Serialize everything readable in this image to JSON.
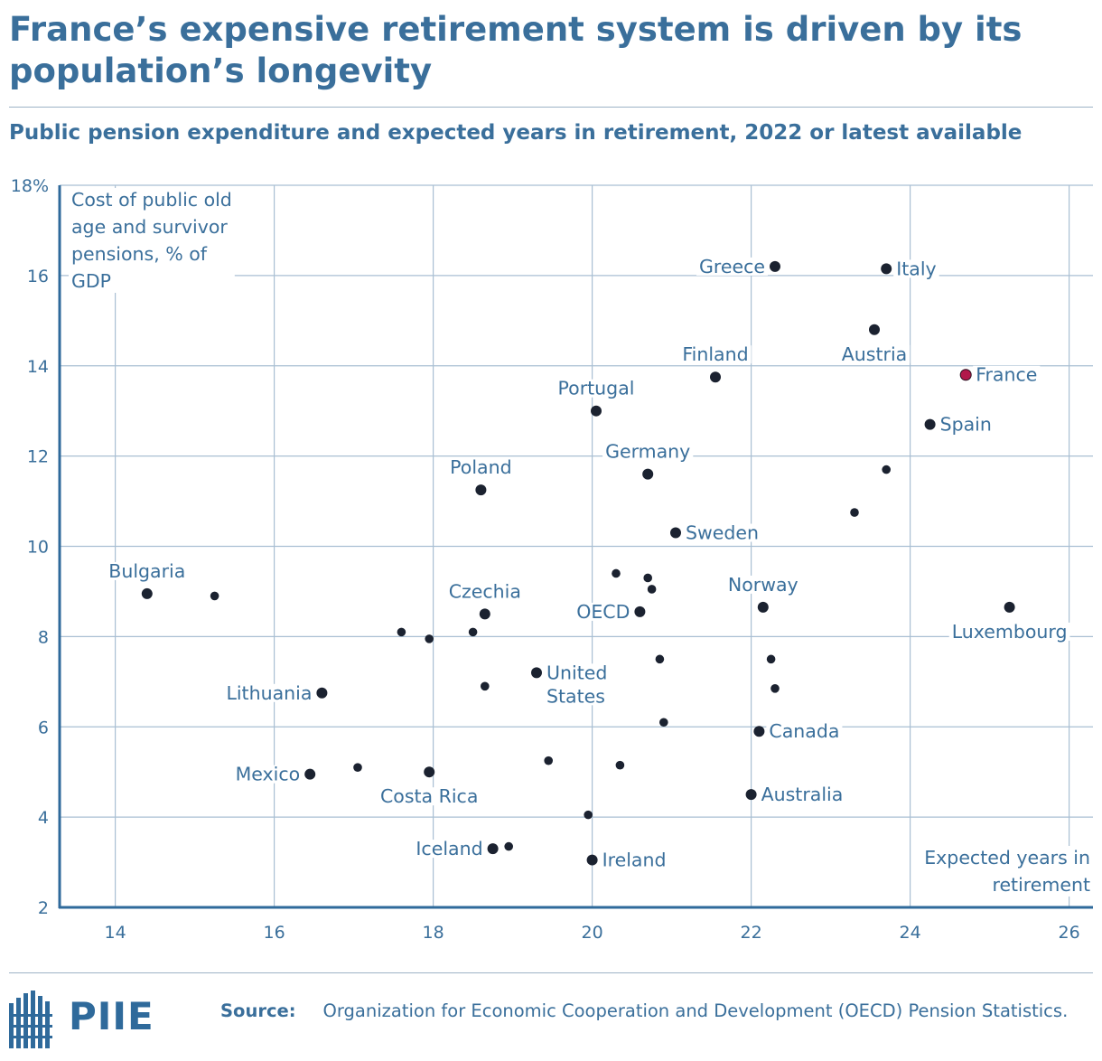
{
  "header": {
    "title": "France’s expensive retirement system is driven by its population’s longevity",
    "subtitle": "Public pension expenditure and expected years in retirement, 2022 or latest available"
  },
  "colors": {
    "text": "#3a6f9b",
    "grid": "#a9bfd3",
    "axis": "#2f6a9b",
    "point": "#1b2230",
    "highlight": "#b1184a"
  },
  "chart_data": {
    "type": "scatter",
    "title": "Public pension expenditure and expected years in retirement, 2022 or latest available",
    "xlabel": "Expected years in retirement",
    "ylabel": "Cost of public old age and survivor pensions, % of GDP",
    "xlim": [
      13.3,
      26.3
    ],
    "ylim": [
      2,
      18
    ],
    "x_ticks": [
      14,
      16,
      18,
      20,
      22,
      24,
      26
    ],
    "y_ticks": [
      2,
      4,
      6,
      8,
      10,
      12,
      14,
      16,
      18
    ],
    "y_tick_labels": [
      "2",
      "4",
      "6",
      "8",
      "10",
      "12",
      "14",
      "16",
      "18%"
    ],
    "points": [
      {
        "label": "Greece",
        "x": 22.3,
        "y": 16.2,
        "size": "large",
        "label_pos": "left"
      },
      {
        "label": "Italy",
        "x": 23.7,
        "y": 16.15,
        "size": "large",
        "label_pos": "right"
      },
      {
        "label": "Austria",
        "x": 23.55,
        "y": 14.8,
        "size": "large",
        "label_pos": "below"
      },
      {
        "label": "Finland",
        "x": 21.55,
        "y": 13.75,
        "size": "large",
        "label_pos": "above"
      },
      {
        "label": "France",
        "x": 24.7,
        "y": 13.8,
        "size": "large",
        "label_pos": "right",
        "highlight": true
      },
      {
        "label": "Portugal",
        "x": 20.05,
        "y": 13.0,
        "size": "large",
        "label_pos": "above"
      },
      {
        "label": "Spain",
        "x": 24.25,
        "y": 12.7,
        "size": "large",
        "label_pos": "right"
      },
      {
        "label": "Germany",
        "x": 20.7,
        "y": 11.6,
        "size": "large",
        "label_pos": "above"
      },
      {
        "label": "Poland",
        "x": 18.6,
        "y": 11.25,
        "size": "large",
        "label_pos": "above"
      },
      {
        "label": "",
        "x": 23.7,
        "y": 11.7,
        "size": "small"
      },
      {
        "label": "",
        "x": 23.3,
        "y": 10.75,
        "size": "small"
      },
      {
        "label": "Sweden",
        "x": 21.05,
        "y": 10.3,
        "size": "large",
        "label_pos": "right"
      },
      {
        "label": "",
        "x": 20.3,
        "y": 9.4,
        "size": "small"
      },
      {
        "label": "",
        "x": 20.7,
        "y": 9.3,
        "size": "small"
      },
      {
        "label": "",
        "x": 20.75,
        "y": 9.05,
        "size": "small"
      },
      {
        "label": "Bulgaria",
        "x": 14.4,
        "y": 8.95,
        "size": "large",
        "label_pos": "above"
      },
      {
        "label": "",
        "x": 15.25,
        "y": 8.9,
        "size": "small"
      },
      {
        "label": "Norway",
        "x": 22.15,
        "y": 8.65,
        "size": "large",
        "label_pos": "above"
      },
      {
        "label": "Luxembourg",
        "x": 25.25,
        "y": 8.65,
        "size": "large",
        "label_pos": "below"
      },
      {
        "label": "Czechia",
        "x": 18.65,
        "y": 8.5,
        "size": "large",
        "label_pos": "above"
      },
      {
        "label": "OECD",
        "x": 20.6,
        "y": 8.55,
        "size": "large",
        "label_pos": "left"
      },
      {
        "label": "",
        "x": 17.6,
        "y": 8.1,
        "size": "small"
      },
      {
        "label": "",
        "x": 18.5,
        "y": 8.1,
        "size": "small"
      },
      {
        "label": "",
        "x": 17.95,
        "y": 7.95,
        "size": "small"
      },
      {
        "label": "",
        "x": 20.85,
        "y": 7.5,
        "size": "small"
      },
      {
        "label": "",
        "x": 22.25,
        "y": 7.5,
        "size": "small"
      },
      {
        "label": "United States",
        "x": 19.3,
        "y": 7.2,
        "size": "large",
        "label_pos": "right2"
      },
      {
        "label": "",
        "x": 18.65,
        "y": 6.9,
        "size": "small"
      },
      {
        "label": "",
        "x": 22.3,
        "y": 6.85,
        "size": "small"
      },
      {
        "label": "Lithuania",
        "x": 16.6,
        "y": 6.75,
        "size": "large",
        "label_pos": "left"
      },
      {
        "label": "",
        "x": 20.9,
        "y": 6.1,
        "size": "small"
      },
      {
        "label": "Canada",
        "x": 22.1,
        "y": 5.9,
        "size": "large",
        "label_pos": "right"
      },
      {
        "label": "",
        "x": 19.45,
        "y": 5.25,
        "size": "small"
      },
      {
        "label": "",
        "x": 20.35,
        "y": 5.15,
        "size": "small"
      },
      {
        "label": "",
        "x": 17.05,
        "y": 5.1,
        "size": "small"
      },
      {
        "label": "Costa Rica",
        "x": 17.95,
        "y": 5.0,
        "size": "large",
        "label_pos": "below"
      },
      {
        "label": "Mexico",
        "x": 16.45,
        "y": 4.95,
        "size": "large",
        "label_pos": "left"
      },
      {
        "label": "Australia",
        "x": 22.0,
        "y": 4.5,
        "size": "large",
        "label_pos": "right"
      },
      {
        "label": "",
        "x": 19.95,
        "y": 4.05,
        "size": "small"
      },
      {
        "label": "",
        "x": 18.95,
        "y": 3.35,
        "size": "small"
      },
      {
        "label": "Iceland",
        "x": 18.75,
        "y": 3.3,
        "size": "large",
        "label_pos": "left"
      },
      {
        "label": "Ireland",
        "x": 20.0,
        "y": 3.05,
        "size": "large",
        "label_pos": "right"
      }
    ]
  },
  "footer": {
    "logo_text": "PIIE",
    "source_label": "Source:",
    "source_text": "Organization for Economic Cooperation and Development (OECD) Pension Statistics."
  }
}
